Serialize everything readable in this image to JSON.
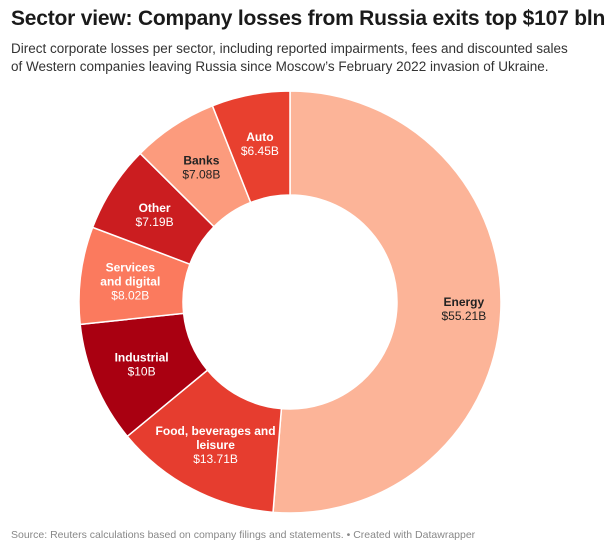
{
  "header": {
    "title": "Sector view: Company losses from Russia exits top $107 bln",
    "subtitle": "Direct corporate losses per sector, including reported impairments, fees and discounted sales of Western companies leaving Russia since Moscow’s February 2022 invasion of Ukraine."
  },
  "footer": {
    "text": "Source: Reuters calculations based on company filings and statements. • Created with Datawrapper"
  },
  "chart_data": {
    "type": "pie",
    "variant": "donut",
    "title": "Sector view: Company losses from Russia exits top $107 bln",
    "slices": [
      {
        "label": "Energy",
        "value": 55.21,
        "value_label": "$55.21B",
        "color": "#fcb498",
        "label_color": "#222222"
      },
      {
        "label": "Food, beverages and leisure",
        "value": 13.71,
        "value_label": "$13.71B",
        "color": "#e63d2f",
        "label_color": "#ffffff"
      },
      {
        "label": "Industrial",
        "value": 10,
        "value_label": "$10B",
        "color": "#a90011",
        "label_color": "#ffffff"
      },
      {
        "label": "Services and digital",
        "value": 8.02,
        "value_label": "$8.02B",
        "color": "#fb7a5e",
        "label_color": "#ffffff"
      },
      {
        "label": "Other",
        "value": 7.19,
        "value_label": "$7.19B",
        "color": "#cb1d20",
        "label_color": "#ffffff"
      },
      {
        "label": "Banks",
        "value": 7.08,
        "value_label": "$7.08B",
        "color": "#fc9b7d",
        "label_color": "#222222"
      },
      {
        "label": "Auto",
        "value": 6.45,
        "value_label": "$6.45B",
        "color": "#e8402f",
        "label_color": "#ffffff"
      }
    ]
  }
}
